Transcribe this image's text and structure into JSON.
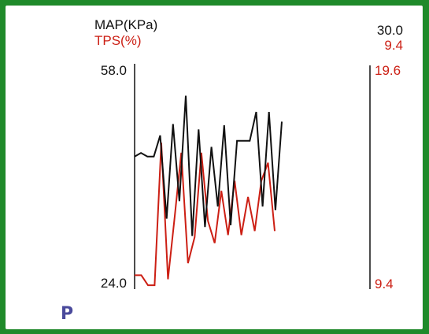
{
  "colors": {
    "frame": "#1f8a2a",
    "background": "#ffffff",
    "map_series": "#111111",
    "tps_series": "#cc1f14",
    "marker": "#4a4a9c"
  },
  "legend": {
    "map_label": "MAP(KPa)",
    "tps_label": "TPS(%)",
    "map_current": "30.0",
    "tps_current": "9.4"
  },
  "axes": {
    "left_top_label": "58.0",
    "left_bottom_label": "24.0",
    "right_top_label": "19.6",
    "right_bottom_label": "9.4"
  },
  "marker_label": "P",
  "chart_data": {
    "type": "line",
    "grid": false,
    "series": [
      {
        "name": "MAP(KPa)",
        "axis": "left",
        "ylim": [
          24.0,
          58.0
        ],
        "values": [
          44.7,
          45.3,
          44.7,
          44.7,
          48.2,
          34.4,
          50.1,
          37.3,
          54.8,
          31.5,
          49.2,
          33.0,
          46.3,
          36.4,
          49.9,
          33.3,
          47.3,
          47.3,
          47.3,
          52.1,
          36.4,
          52.1,
          35.8,
          50.5
        ]
      },
      {
        "name": "TPS(%)",
        "axis": "right",
        "ylim": [
          9.4,
          19.6
        ],
        "values": [
          9.7,
          9.7,
          9.2,
          9.2,
          16.3,
          9.5,
          12.6,
          15.8,
          10.3,
          11.6,
          15.8,
          12.4,
          11.3,
          13.9,
          11.7,
          14.4,
          11.7,
          13.6,
          11.9,
          14.4,
          15.3,
          11.9
        ]
      }
    ]
  }
}
